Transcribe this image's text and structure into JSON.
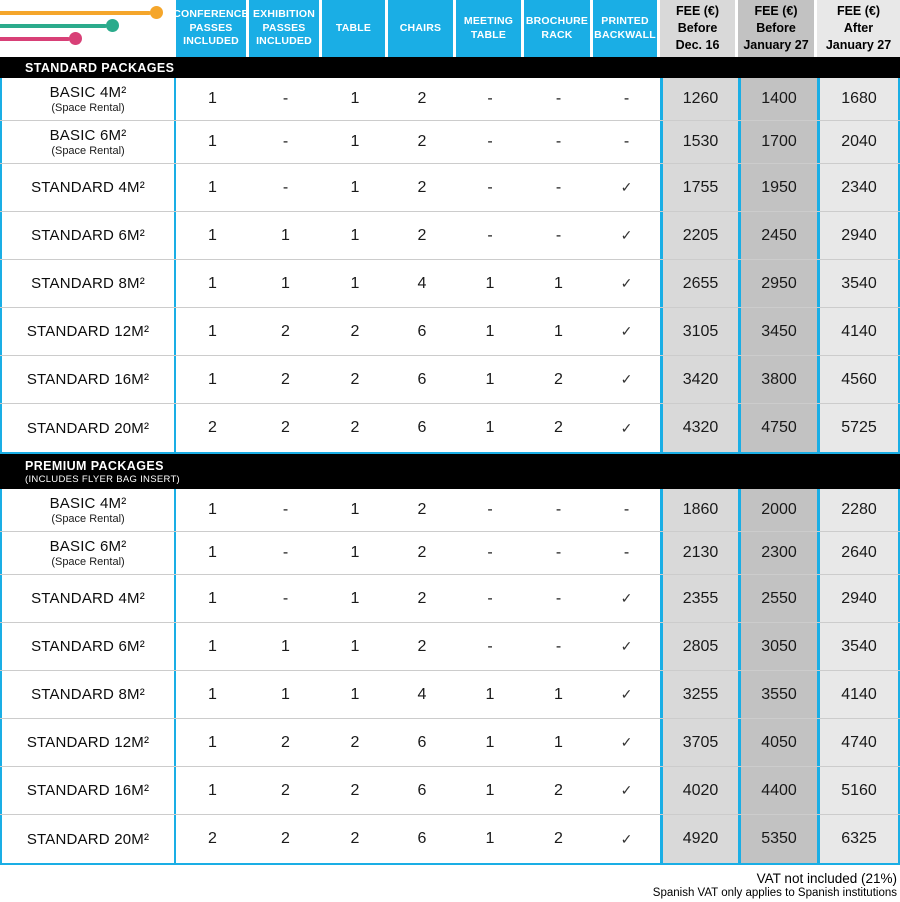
{
  "colors": {
    "accent_cyan": "#1AAEE5",
    "fee_col_light": "#D9D9D9",
    "fee_col_mid": "#C2C2C2",
    "fee_col_lighter": "#E8E8E8",
    "section_bar": "#000000",
    "row_divider": "#CCCCCC",
    "decor_orange": "#F5A62B",
    "decor_teal": "#2BAB8C",
    "decor_pink": "#D84077"
  },
  "header": {
    "columns": [
      "CONFERENCE PASSES INCLUDED",
      "EXHIBITION PASSES INCLUDED",
      "TABLE",
      "CHAIRS",
      "MEETING TABLE",
      "BROCHURE RACK",
      "PRINTED BACKWALL"
    ],
    "fee_columns": [
      "FEE (€)\nBefore\nDec. 16",
      "FEE (€)\nBefore\nJanuary 27",
      "FEE (€)\nAfter\nJanuary 27"
    ]
  },
  "sections": [
    {
      "title": "STANDARD PACKAGES",
      "subtitle": "",
      "rows": [
        {
          "name": "BASIC 4M²",
          "sub": "(Space Rental)",
          "values": [
            "1",
            "-",
            "1",
            "2",
            "-",
            "-",
            "-"
          ],
          "fees": [
            "1260",
            "1400",
            "1680"
          ]
        },
        {
          "name": "BASIC 6M²",
          "sub": "(Space Rental)",
          "values": [
            "1",
            "-",
            "1",
            "2",
            "-",
            "-",
            "-"
          ],
          "fees": [
            "1530",
            "1700",
            "2040"
          ]
        },
        {
          "name": "STANDARD 4M²",
          "sub": "",
          "values": [
            "1",
            "-",
            "1",
            "2",
            "-",
            "-",
            "✓"
          ],
          "fees": [
            "1755",
            "1950",
            "2340"
          ]
        },
        {
          "name": "STANDARD 6M²",
          "sub": "",
          "values": [
            "1",
            "1",
            "1",
            "2",
            "-",
            "-",
            "✓"
          ],
          "fees": [
            "2205",
            "2450",
            "2940"
          ]
        },
        {
          "name": "STANDARD 8M²",
          "sub": "",
          "values": [
            "1",
            "1",
            "1",
            "4",
            "1",
            "1",
            "✓"
          ],
          "fees": [
            "2655",
            "2950",
            "3540"
          ]
        },
        {
          "name": "STANDARD 12M²",
          "sub": "",
          "values": [
            "1",
            "2",
            "2",
            "6",
            "1",
            "1",
            "✓"
          ],
          "fees": [
            "3105",
            "3450",
            "4140"
          ]
        },
        {
          "name": "STANDARD 16M²",
          "sub": "",
          "values": [
            "1",
            "2",
            "2",
            "6",
            "1",
            "2",
            "✓"
          ],
          "fees": [
            "3420",
            "3800",
            "4560"
          ]
        },
        {
          "name": "STANDARD 20M²",
          "sub": "",
          "values": [
            "2",
            "2",
            "2",
            "6",
            "1",
            "2",
            "✓"
          ],
          "fees": [
            "4320",
            "4750",
            "5725"
          ]
        }
      ]
    },
    {
      "title": "PREMIUM PACKAGES",
      "subtitle": "(INCLUDES FLYER BAG INSERT)",
      "rows": [
        {
          "name": "BASIC 4M²",
          "sub": "(Space Rental)",
          "values": [
            "1",
            "-",
            "1",
            "2",
            "-",
            "-",
            "-"
          ],
          "fees": [
            "1860",
            "2000",
            "2280"
          ]
        },
        {
          "name": "BASIC 6M²",
          "sub": "(Space Rental)",
          "values": [
            "1",
            "-",
            "1",
            "2",
            "-",
            "-",
            "-"
          ],
          "fees": [
            "2130",
            "2300",
            "2640"
          ]
        },
        {
          "name": "STANDARD 4M²",
          "sub": "",
          "values": [
            "1",
            "-",
            "1",
            "2",
            "-",
            "-",
            "✓"
          ],
          "fees": [
            "2355",
            "2550",
            "2940"
          ]
        },
        {
          "name": "STANDARD 6M²",
          "sub": "",
          "values": [
            "1",
            "1",
            "1",
            "2",
            "-",
            "-",
            "✓"
          ],
          "fees": [
            "2805",
            "3050",
            "3540"
          ]
        },
        {
          "name": "STANDARD 8M²",
          "sub": "",
          "values": [
            "1",
            "1",
            "1",
            "4",
            "1",
            "1",
            "✓"
          ],
          "fees": [
            "3255",
            "3550",
            "4140"
          ]
        },
        {
          "name": "STANDARD 12M²",
          "sub": "",
          "values": [
            "1",
            "2",
            "2",
            "6",
            "1",
            "1",
            "✓"
          ],
          "fees": [
            "3705",
            "4050",
            "4740"
          ]
        },
        {
          "name": "STANDARD 16M²",
          "sub": "",
          "values": [
            "1",
            "2",
            "2",
            "6",
            "1",
            "2",
            "✓"
          ],
          "fees": [
            "4020",
            "4400",
            "5160"
          ]
        },
        {
          "name": "STANDARD 20M²",
          "sub": "",
          "values": [
            "2",
            "2",
            "2",
            "6",
            "1",
            "2",
            "✓"
          ],
          "fees": [
            "4920",
            "5350",
            "6325"
          ]
        }
      ]
    }
  ],
  "footer": {
    "line1": "VAT not included (21%)",
    "line2": "Spanish VAT only applies to Spanish institutions"
  }
}
